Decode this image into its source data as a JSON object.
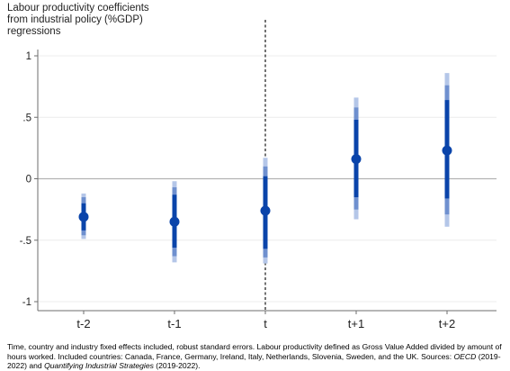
{
  "chart_data": {
    "type": "scatter",
    "ylabel_lines": [
      "Labour productivity coefficients",
      "from industrial policy (%GDP)",
      "regressions"
    ],
    "categories": [
      "t-2",
      "t-1",
      "t",
      "t+1",
      "t+2"
    ],
    "y_ticks": [
      1,
      0.5,
      0,
      -0.5,
      -1
    ],
    "y_tick_labels": [
      "1",
      ".5",
      "0",
      "-.5",
      "-1"
    ],
    "ylim": [
      -1.05,
      1.05
    ],
    "reference_line_y": 0,
    "event_line_category": "t",
    "grid": true,
    "points": [
      {
        "x": "t-2",
        "estimate": -0.31,
        "ci_outer": [
          -0.49,
          -0.12
        ],
        "ci_mid": [
          -0.46,
          -0.15
        ],
        "ci_inner": [
          -0.42,
          -0.2
        ]
      },
      {
        "x": "t-1",
        "estimate": -0.35,
        "ci_outer": [
          -0.68,
          -0.02
        ],
        "ci_mid": [
          -0.63,
          -0.07
        ],
        "ci_inner": [
          -0.56,
          -0.13
        ]
      },
      {
        "x": "t",
        "estimate": -0.26,
        "ci_outer": [
          -0.69,
          0.17
        ],
        "ci_mid": [
          -0.64,
          0.1
        ],
        "ci_inner": [
          -0.57,
          0.02
        ]
      },
      {
        "x": "t+1",
        "estimate": 0.16,
        "ci_outer": [
          -0.33,
          0.66
        ],
        "ci_mid": [
          -0.25,
          0.58
        ],
        "ci_inner": [
          -0.15,
          0.48
        ]
      },
      {
        "x": "t+2",
        "estimate": 0.23,
        "ci_outer": [
          -0.39,
          0.86
        ],
        "ci_mid": [
          -0.29,
          0.76
        ],
        "ci_inner": [
          -0.16,
          0.64
        ]
      }
    ],
    "colors": {
      "estimate": "#0a44aa",
      "ci_inner": "#0a44aa",
      "ci_mid": "#6f90cf",
      "ci_outer": "#b4c6e8",
      "axis": "#6e6e6e",
      "grid": "#ececec",
      "zero": "#b3b3b3"
    }
  },
  "note": {
    "part1": "Time, country and industry fixed effects included, robust standard errors. Labour productivity defined as Gross Value Added divided by amount of hours worked. Included countries: Canada, France, Germany, Ireland, Italy, Netherlands, Slovenia, Sweden, and the UK. Sources: ",
    "source1": "OECD",
    "part2": " (2019-2022) and ",
    "source2": "Quantifying Industrial Strategies",
    "part3": " (2019-2022)."
  }
}
